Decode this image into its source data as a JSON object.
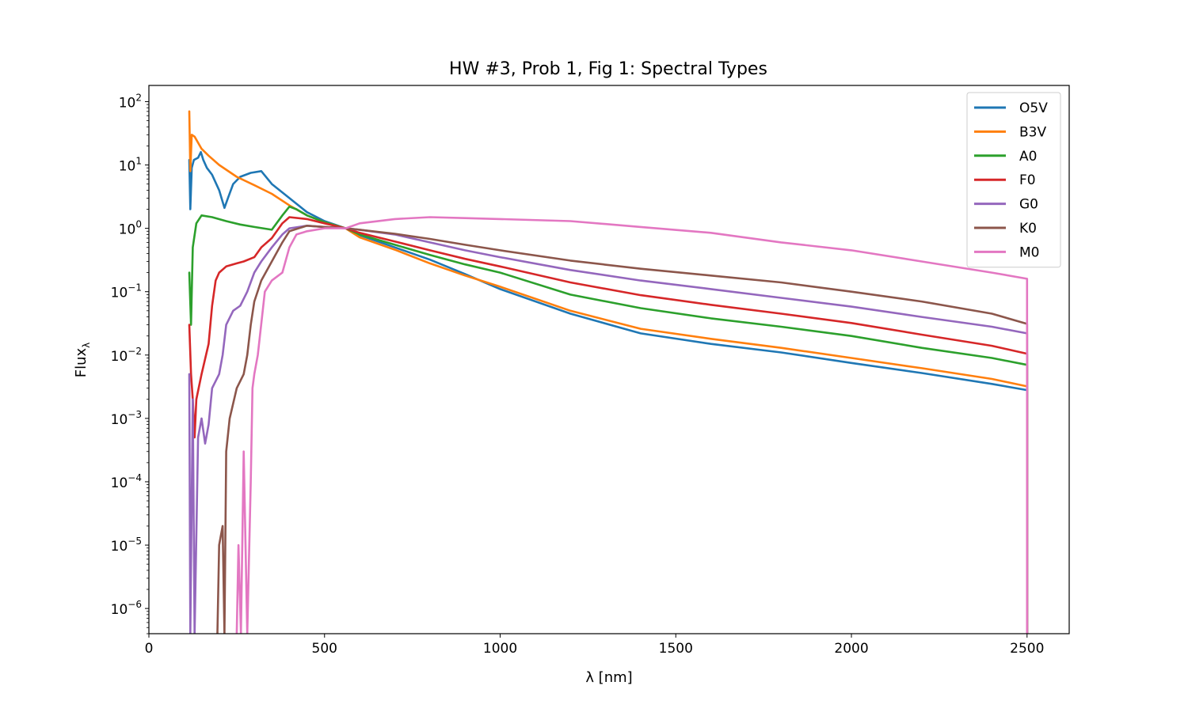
{
  "chart_data": {
    "type": "line",
    "title": "HW #3, Prob 1, Fig 1: Spectral Types",
    "xlabel": "λ [nm]",
    "ylabel": "Flux",
    "ylabel_subscript": "λ",
    "xscale": "linear",
    "yscale": "log",
    "xlim": [
      0,
      2620
    ],
    "ylim": [
      4e-07,
      180
    ],
    "xticks": [
      0,
      500,
      1000,
      1500,
      2000,
      2500
    ],
    "xtick_labels": [
      "0",
      "500",
      "1000",
      "1500",
      "2000",
      "2500"
    ],
    "yticks": [
      {
        "value": 100,
        "base": "10",
        "exp": "2"
      },
      {
        "value": 10,
        "base": "10",
        "exp": "1"
      },
      {
        "value": 1,
        "base": "10",
        "exp": "0"
      },
      {
        "value": 0.1,
        "base": "10",
        "exp": "−1"
      },
      {
        "value": 0.01,
        "base": "10",
        "exp": "−2"
      },
      {
        "value": 0.001,
        "base": "10",
        "exp": "−3"
      },
      {
        "value": 0.0001,
        "base": "10",
        "exp": "−4"
      },
      {
        "value": 1e-05,
        "base": "10",
        "exp": "−5"
      },
      {
        "value": 1e-06,
        "base": "10",
        "exp": "−6"
      }
    ],
    "grid": false,
    "legend_position": "top-right",
    "series": [
      {
        "name": "O5V",
        "color": "#1f77b4",
        "points": [
          [
            115,
            12
          ],
          [
            118,
            2
          ],
          [
            122,
            9
          ],
          [
            128,
            12
          ],
          [
            140,
            13
          ],
          [
            148,
            16
          ],
          [
            155,
            12
          ],
          [
            165,
            9
          ],
          [
            180,
            7
          ],
          [
            200,
            4
          ],
          [
            215,
            2.1
          ],
          [
            225,
            3
          ],
          [
            240,
            5
          ],
          [
            260,
            6.5
          ],
          [
            290,
            7.5
          ],
          [
            320,
            8
          ],
          [
            350,
            5
          ],
          [
            400,
            3
          ],
          [
            450,
            1.8
          ],
          [
            500,
            1.3
          ],
          [
            560,
            1.0
          ],
          [
            600,
            0.78
          ],
          [
            700,
            0.5
          ],
          [
            800,
            0.32
          ],
          [
            900,
            0.19
          ],
          [
            1000,
            0.11
          ],
          [
            1200,
            0.045
          ],
          [
            1400,
            0.022
          ],
          [
            1600,
            0.015
          ],
          [
            1800,
            0.011
          ],
          [
            2000,
            0.0075
          ],
          [
            2200,
            0.0052
          ],
          [
            2400,
            0.0035
          ],
          [
            2500,
            0.0028
          ],
          [
            2500,
            4e-07
          ]
        ]
      },
      {
        "name": "B3V",
        "color": "#ff7f0e",
        "points": [
          [
            115,
            70
          ],
          [
            118,
            8
          ],
          [
            122,
            30
          ],
          [
            130,
            28
          ],
          [
            150,
            18
          ],
          [
            170,
            14
          ],
          [
            200,
            10
          ],
          [
            250,
            6.5
          ],
          [
            300,
            4.8
          ],
          [
            350,
            3.5
          ],
          [
            400,
            2.3
          ],
          [
            450,
            1.6
          ],
          [
            500,
            1.25
          ],
          [
            560,
            1.0
          ],
          [
            600,
            0.72
          ],
          [
            700,
            0.46
          ],
          [
            800,
            0.28
          ],
          [
            900,
            0.18
          ],
          [
            1000,
            0.12
          ],
          [
            1200,
            0.05
          ],
          [
            1400,
            0.026
          ],
          [
            1600,
            0.018
          ],
          [
            1800,
            0.013
          ],
          [
            2000,
            0.009
          ],
          [
            2200,
            0.0062
          ],
          [
            2400,
            0.0042
          ],
          [
            2500,
            0.0032
          ],
          [
            2500,
            4e-07
          ]
        ]
      },
      {
        "name": "A0",
        "color": "#2ca02c",
        "points": [
          [
            115,
            0.2
          ],
          [
            120,
            0.03
          ],
          [
            125,
            0.5
          ],
          [
            135,
            1.2
          ],
          [
            150,
            1.6
          ],
          [
            180,
            1.5
          ],
          [
            220,
            1.3
          ],
          [
            260,
            1.15
          ],
          [
            300,
            1.05
          ],
          [
            350,
            0.95
          ],
          [
            380,
            1.6
          ],
          [
            400,
            2.2
          ],
          [
            420,
            2.0
          ],
          [
            450,
            1.6
          ],
          [
            500,
            1.25
          ],
          [
            560,
            1.0
          ],
          [
            600,
            0.8
          ],
          [
            700,
            0.55
          ],
          [
            800,
            0.38
          ],
          [
            900,
            0.27
          ],
          [
            1000,
            0.2
          ],
          [
            1200,
            0.09
          ],
          [
            1400,
            0.055
          ],
          [
            1600,
            0.038
          ],
          [
            1800,
            0.028
          ],
          [
            2000,
            0.02
          ],
          [
            2200,
            0.013
          ],
          [
            2400,
            0.009
          ],
          [
            2500,
            0.007
          ],
          [
            2500,
            4e-07
          ]
        ]
      },
      {
        "name": "F0",
        "color": "#d62728",
        "points": [
          [
            115,
            0.03
          ],
          [
            120,
            0.005
          ],
          [
            125,
            0.002
          ],
          [
            130,
            0.0005
          ],
          [
            135,
            0.002
          ],
          [
            150,
            0.005
          ],
          [
            170,
            0.015
          ],
          [
            180,
            0.06
          ],
          [
            190,
            0.15
          ],
          [
            200,
            0.2
          ],
          [
            220,
            0.25
          ],
          [
            250,
            0.28
          ],
          [
            270,
            0.3
          ],
          [
            300,
            0.35
          ],
          [
            320,
            0.5
          ],
          [
            350,
            0.7
          ],
          [
            380,
            1.2
          ],
          [
            400,
            1.5
          ],
          [
            450,
            1.4
          ],
          [
            500,
            1.2
          ],
          [
            560,
            1.0
          ],
          [
            600,
            0.85
          ],
          [
            700,
            0.62
          ],
          [
            800,
            0.45
          ],
          [
            900,
            0.33
          ],
          [
            1000,
            0.25
          ],
          [
            1200,
            0.14
          ],
          [
            1400,
            0.088
          ],
          [
            1600,
            0.062
          ],
          [
            1800,
            0.045
          ],
          [
            2000,
            0.032
          ],
          [
            2200,
            0.021
          ],
          [
            2400,
            0.014
          ],
          [
            2500,
            0.0105
          ],
          [
            2500,
            4e-07
          ]
        ]
      },
      {
        "name": "G0",
        "color": "#9467bd",
        "points": [
          [
            115,
            0.005
          ],
          [
            118,
            4e-07
          ],
          [
            125,
            0.002
          ],
          [
            130,
            4e-07
          ],
          [
            140,
            0.0005
          ],
          [
            150,
            0.001
          ],
          [
            160,
            0.0004
          ],
          [
            170,
            0.0008
          ],
          [
            180,
            0.003
          ],
          [
            200,
            0.005
          ],
          [
            210,
            0.01
          ],
          [
            220,
            0.03
          ],
          [
            240,
            0.05
          ],
          [
            260,
            0.06
          ],
          [
            280,
            0.1
          ],
          [
            300,
            0.2
          ],
          [
            320,
            0.3
          ],
          [
            350,
            0.5
          ],
          [
            380,
            0.8
          ],
          [
            400,
            1.0
          ],
          [
            450,
            1.1
          ],
          [
            500,
            1.05
          ],
          [
            560,
            1.0
          ],
          [
            600,
            0.95
          ],
          [
            700,
            0.8
          ],
          [
            800,
            0.6
          ],
          [
            900,
            0.45
          ],
          [
            1000,
            0.35
          ],
          [
            1200,
            0.22
          ],
          [
            1400,
            0.15
          ],
          [
            1600,
            0.11
          ],
          [
            1800,
            0.08
          ],
          [
            2000,
            0.058
          ],
          [
            2200,
            0.04
          ],
          [
            2400,
            0.028
          ],
          [
            2500,
            0.022
          ],
          [
            2500,
            4e-07
          ]
        ]
      },
      {
        "name": "K0",
        "color": "#8c564b",
        "points": [
          [
            195,
            4e-07
          ],
          [
            200,
            1e-05
          ],
          [
            210,
            2e-05
          ],
          [
            215,
            4e-07
          ],
          [
            220,
            0.0003
          ],
          [
            230,
            0.001
          ],
          [
            250,
            0.003
          ],
          [
            270,
            0.005
          ],
          [
            280,
            0.01
          ],
          [
            290,
            0.03
          ],
          [
            300,
            0.07
          ],
          [
            320,
            0.15
          ],
          [
            350,
            0.3
          ],
          [
            380,
            0.6
          ],
          [
            400,
            0.9
          ],
          [
            450,
            1.1
          ],
          [
            500,
            1.05
          ],
          [
            560,
            1.0
          ],
          [
            600,
            0.95
          ],
          [
            700,
            0.82
          ],
          [
            800,
            0.68
          ],
          [
            900,
            0.55
          ],
          [
            1000,
            0.45
          ],
          [
            1200,
            0.31
          ],
          [
            1400,
            0.23
          ],
          [
            1600,
            0.18
          ],
          [
            1800,
            0.14
          ],
          [
            2000,
            0.1
          ],
          [
            2200,
            0.07
          ],
          [
            2400,
            0.045
          ],
          [
            2500,
            0.031
          ],
          [
            2500,
            4e-07
          ]
        ]
      },
      {
        "name": "M0",
        "color": "#e377c2",
        "points": [
          [
            250,
            4e-07
          ],
          [
            255,
            1e-05
          ],
          [
            262,
            4e-07
          ],
          [
            270,
            0.0003
          ],
          [
            280,
            4e-07
          ],
          [
            290,
            0.0001
          ],
          [
            295,
            0.003
          ],
          [
            300,
            0.005
          ],
          [
            310,
            0.01
          ],
          [
            330,
            0.1
          ],
          [
            350,
            0.15
          ],
          [
            380,
            0.2
          ],
          [
            400,
            0.5
          ],
          [
            420,
            0.8
          ],
          [
            450,
            0.9
          ],
          [
            500,
            1.0
          ],
          [
            560,
            1.0
          ],
          [
            600,
            1.2
          ],
          [
            700,
            1.4
          ],
          [
            800,
            1.5
          ],
          [
            900,
            1.45
          ],
          [
            1000,
            1.4
          ],
          [
            1200,
            1.3
          ],
          [
            1400,
            1.05
          ],
          [
            1600,
            0.85
          ],
          [
            1800,
            0.6
          ],
          [
            2000,
            0.45
          ],
          [
            2200,
            0.3
          ],
          [
            2400,
            0.2
          ],
          [
            2500,
            0.16
          ],
          [
            2500,
            4e-07
          ]
        ]
      }
    ]
  }
}
